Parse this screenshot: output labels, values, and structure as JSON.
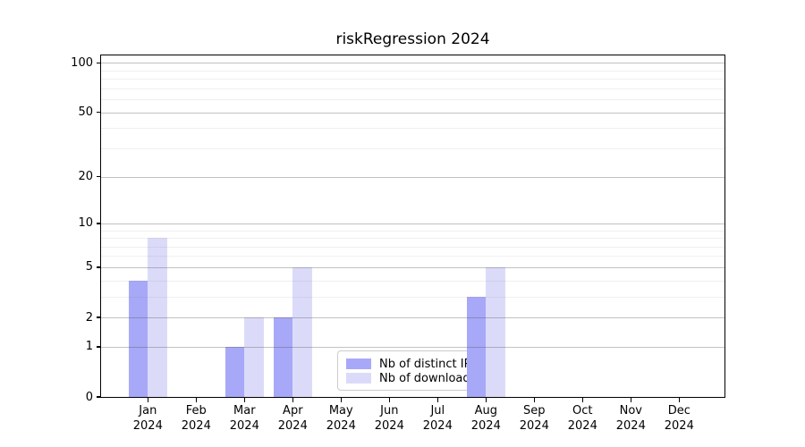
{
  "title": "riskRegression 2024",
  "legend": {
    "entries": [
      {
        "label": "Nb of distinct IPs",
        "color": "#a8a8f8"
      },
      {
        "label": "Nb of downloads",
        "color": "#dbdbf9"
      }
    ]
  },
  "chart_data": {
    "type": "bar",
    "title": "riskRegression 2024",
    "xlabel": "",
    "ylabel": "",
    "y_scale": "log1p",
    "categories": [
      "Jan 2024",
      "Feb 2024",
      "Mar 2024",
      "Apr 2024",
      "May 2024",
      "Jun 2024",
      "Jul 2024",
      "Aug 2024",
      "Sep 2024",
      "Oct 2024",
      "Nov 2024",
      "Dec 2024"
    ],
    "series": [
      {
        "name": "Nb of distinct IPs",
        "color": "#a8a8f8",
        "values": [
          4,
          0,
          1,
          2,
          0,
          0,
          0,
          3,
          0,
          0,
          0,
          0
        ]
      },
      {
        "name": "Nb of downloads",
        "color": "#dbdbf9",
        "values": [
          8,
          0,
          2,
          5,
          0,
          0,
          0,
          5,
          0,
          0,
          0,
          0
        ]
      }
    ],
    "y_major_ticks": [
      0,
      1,
      2,
      5,
      10,
      20,
      50,
      100
    ],
    "y_minor_gridlines": [
      3,
      4,
      6,
      7,
      8,
      9,
      30,
      40,
      60,
      70,
      80,
      90
    ],
    "ylim": [
      0,
      111
    ],
    "grid": true,
    "legend_position": "lower center"
  }
}
